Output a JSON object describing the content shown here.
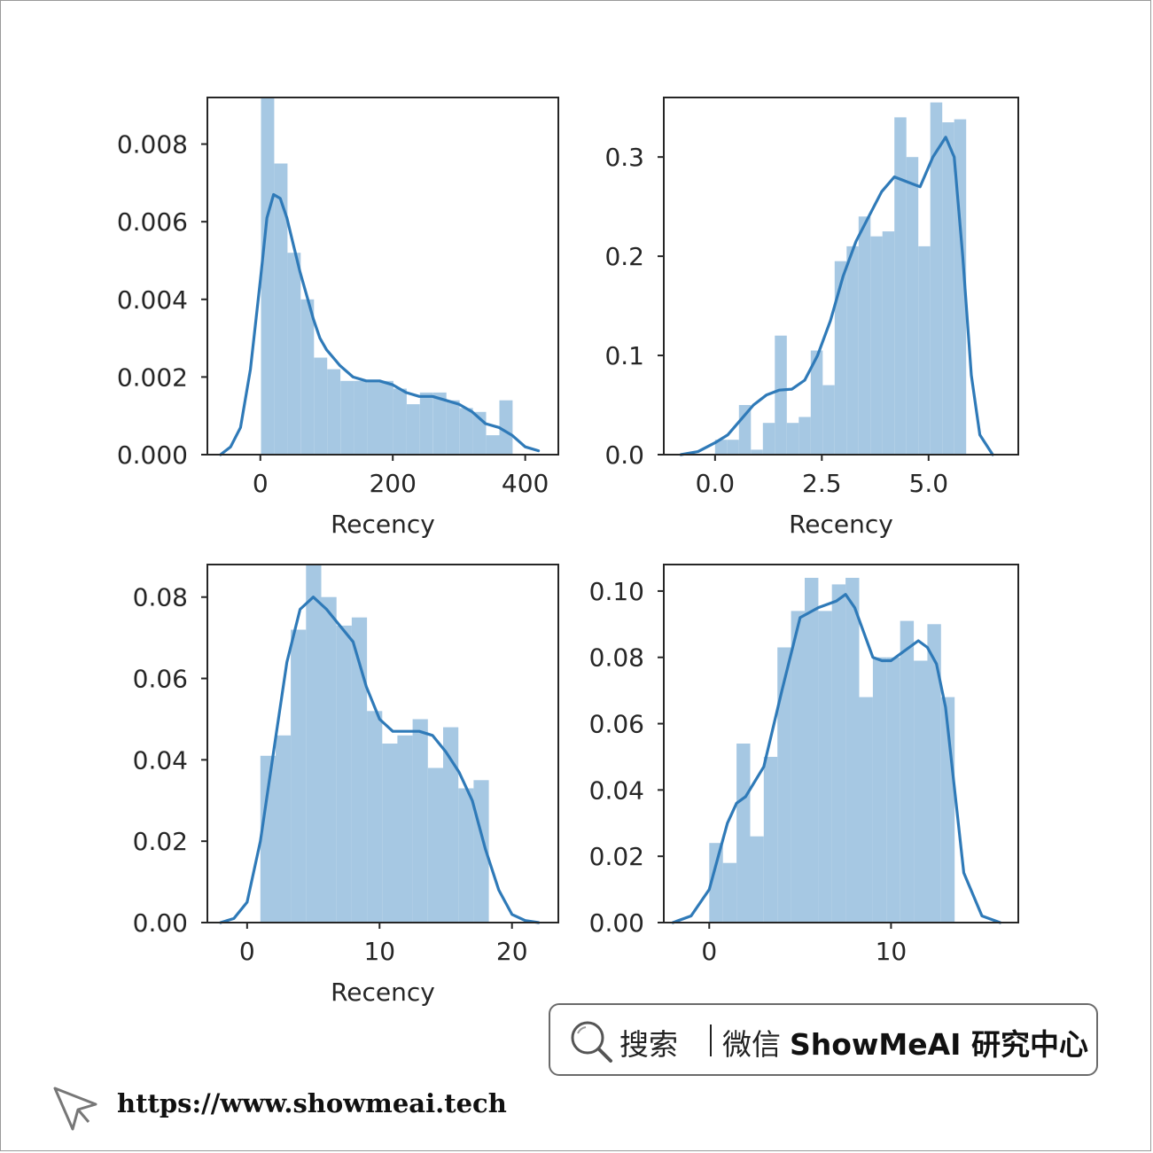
{
  "chart_data": [
    {
      "type": "bar",
      "overlay": "kde-line",
      "xlabel": "Recency",
      "xlim": [
        -80,
        450
      ],
      "ylim": [
        0,
        0.0092
      ],
      "xticks": [
        0,
        200,
        400
      ],
      "xtick_labels": [
        "0",
        "200",
        "400"
      ],
      "yticks": [
        0,
        0.002,
        0.004,
        0.006,
        0.008
      ],
      "ytick_labels": [
        "0.000",
        "0.002",
        "0.004",
        "0.006",
        "0.008"
      ],
      "hist_bin_edges": [
        1,
        21,
        41,
        61,
        81,
        101,
        121,
        141,
        161,
        181,
        201,
        221,
        241,
        261,
        281,
        301,
        321,
        341,
        361,
        381
      ],
      "hist_values": [
        0.0092,
        0.0075,
        0.0052,
        0.004,
        0.0025,
        0.0022,
        0.0019,
        0.0019,
        0.0019,
        0.0019,
        0.0017,
        0.0013,
        0.0016,
        0.0016,
        0.0014,
        0.0012,
        0.0011,
        0.0005,
        0.0014
      ],
      "kde_x": [
        -60,
        -45,
        -30,
        -15,
        0,
        10,
        20,
        30,
        40,
        50,
        60,
        70,
        80,
        90,
        100,
        110,
        120,
        140,
        160,
        180,
        200,
        220,
        240,
        260,
        280,
        300,
        320,
        340,
        360,
        380,
        400,
        420
      ],
      "kde_y": [
        0,
        0.0002,
        0.0007,
        0.0022,
        0.0045,
        0.0061,
        0.0067,
        0.0066,
        0.0061,
        0.0054,
        0.0047,
        0.0041,
        0.0035,
        0.003,
        0.0027,
        0.0025,
        0.0023,
        0.002,
        0.0019,
        0.0019,
        0.0018,
        0.0016,
        0.0015,
        0.0015,
        0.0014,
        0.0013,
        0.0011,
        0.0008,
        0.0007,
        0.0005,
        0.0002,
        0.0001
      ]
    },
    {
      "type": "bar",
      "overlay": "kde-line",
      "xlabel": "Recency",
      "xlim": [
        -1.2,
        7.1
      ],
      "ylim": [
        0,
        0.36
      ],
      "xticks": [
        0,
        2.5,
        5
      ],
      "xtick_labels": [
        "0.0",
        "2.5",
        "5.0"
      ],
      "yticks": [
        0,
        0.1,
        0.2,
        0.3
      ],
      "ytick_labels": [
        "0.0",
        "0.1",
        "0.2",
        "0.3"
      ],
      "hist_bin_edges": [
        0,
        0.28,
        0.56,
        0.84,
        1.12,
        1.4,
        1.68,
        1.96,
        2.24,
        2.52,
        2.8,
        3.08,
        3.36,
        3.64,
        3.92,
        4.2,
        4.48,
        4.76,
        5.04,
        5.32,
        5.6,
        5.88
      ],
      "hist_values": [
        0.015,
        0.015,
        0.05,
        0.005,
        0.032,
        0.12,
        0.032,
        0.038,
        0.105,
        0.07,
        0.195,
        0.21,
        0.24,
        0.22,
        0.225,
        0.34,
        0.3,
        0.21,
        0.355,
        0.335,
        0.338
      ],
      "kde_x": [
        -0.8,
        -0.4,
        0,
        0.3,
        0.6,
        0.9,
        1.2,
        1.5,
        1.8,
        2.1,
        2.4,
        2.7,
        3.0,
        3.3,
        3.6,
        3.9,
        4.2,
        4.5,
        4.8,
        5.1,
        5.4,
        5.6,
        5.8,
        6.0,
        6.2,
        6.5
      ],
      "kde_y": [
        0,
        0.003,
        0.012,
        0.02,
        0.035,
        0.05,
        0.06,
        0.065,
        0.066,
        0.075,
        0.1,
        0.135,
        0.18,
        0.215,
        0.24,
        0.265,
        0.28,
        0.275,
        0.27,
        0.3,
        0.32,
        0.3,
        0.2,
        0.08,
        0.02,
        0
      ]
    },
    {
      "type": "bar",
      "overlay": "kde-line",
      "xlabel": "Recency",
      "xlim": [
        -3,
        23.5
      ],
      "ylim": [
        0,
        0.088
      ],
      "xticks": [
        0,
        10,
        20
      ],
      "xtick_labels": [
        "0",
        "10",
        "20"
      ],
      "yticks": [
        0,
        0.02,
        0.04,
        0.06,
        0.08
      ],
      "ytick_labels": [
        "0.00",
        "0.02",
        "0.04",
        "0.06",
        "0.08"
      ],
      "hist_bin_edges": [
        1,
        2.15,
        3.3,
        4.45,
        5.6,
        6.75,
        7.9,
        9.05,
        10.2,
        11.35,
        12.5,
        13.65,
        14.8,
        15.95,
        17.1,
        18.25,
        19.4
      ],
      "hist_values": [
        0.041,
        0.046,
        0.072,
        0.088,
        0.08,
        0.073,
        0.075,
        0.052,
        0.044,
        0.046,
        0.05,
        0.038,
        0.048,
        0.033,
        0.035,
        0.0
      ],
      "kde_x": [
        -2,
        -1,
        0,
        1,
        2,
        3,
        4,
        5,
        6,
        7,
        8,
        9,
        10,
        11,
        12,
        13,
        14,
        15,
        16,
        17,
        18,
        19,
        20,
        21,
        22
      ],
      "kde_y": [
        0,
        0.001,
        0.005,
        0.02,
        0.042,
        0.064,
        0.077,
        0.08,
        0.077,
        0.073,
        0.069,
        0.058,
        0.05,
        0.047,
        0.047,
        0.047,
        0.046,
        0.042,
        0.037,
        0.03,
        0.018,
        0.008,
        0.002,
        0.0005,
        0
      ]
    },
    {
      "type": "bar",
      "overlay": "kde-line",
      "xlabel": "",
      "xlim": [
        -2.5,
        17
      ],
      "ylim": [
        0,
        0.108
      ],
      "xticks": [
        0,
        10
      ],
      "xtick_labels": [
        "0",
        "10"
      ],
      "yticks": [
        0,
        0.02,
        0.04,
        0.06,
        0.08,
        0.1
      ],
      "ytick_labels": [
        "0.00",
        "0.02",
        "0.04",
        "0.06",
        "0.08",
        "0.10"
      ],
      "hist_bin_edges": [
        0,
        0.75,
        1.5,
        2.25,
        3.0,
        3.75,
        4.5,
        5.25,
        6.0,
        6.75,
        7.5,
        8.25,
        9.0,
        9.75,
        10.5,
        11.25,
        12.0,
        12.75,
        13.5,
        14.25
      ],
      "hist_values": [
        0.024,
        0.018,
        0.054,
        0.026,
        0.05,
        0.083,
        0.094,
        0.104,
        0.094,
        0.102,
        0.104,
        0.068,
        0.08,
        0.08,
        0.091,
        0.079,
        0.09,
        0.068,
        0
      ],
      "kde_x": [
        -2,
        -1,
        0,
        0.5,
        1,
        1.5,
        2,
        3,
        4,
        5,
        6,
        7,
        7.5,
        8,
        9,
        9.5,
        10,
        11,
        11.5,
        12,
        12.5,
        13,
        13.5,
        14,
        15,
        16
      ],
      "kde_y": [
        0,
        0.002,
        0.01,
        0.02,
        0.03,
        0.036,
        0.038,
        0.047,
        0.07,
        0.092,
        0.095,
        0.097,
        0.099,
        0.095,
        0.08,
        0.079,
        0.079,
        0.083,
        0.085,
        0.083,
        0.078,
        0.065,
        0.04,
        0.015,
        0.002,
        0
      ]
    }
  ],
  "colors": {
    "bar_fill": "#a6c8e3",
    "kde_line": "#2f7ab8",
    "axes": "#262626",
    "text": "#262626"
  },
  "search_bar": {
    "icon": "search-icon",
    "prefix": "搜索",
    "channel": "微信",
    "brand": "ShowMeAI 研究中心"
  },
  "footer": {
    "icon": "cursor-arrow-icon",
    "url": "https://www.showmeai.tech"
  }
}
